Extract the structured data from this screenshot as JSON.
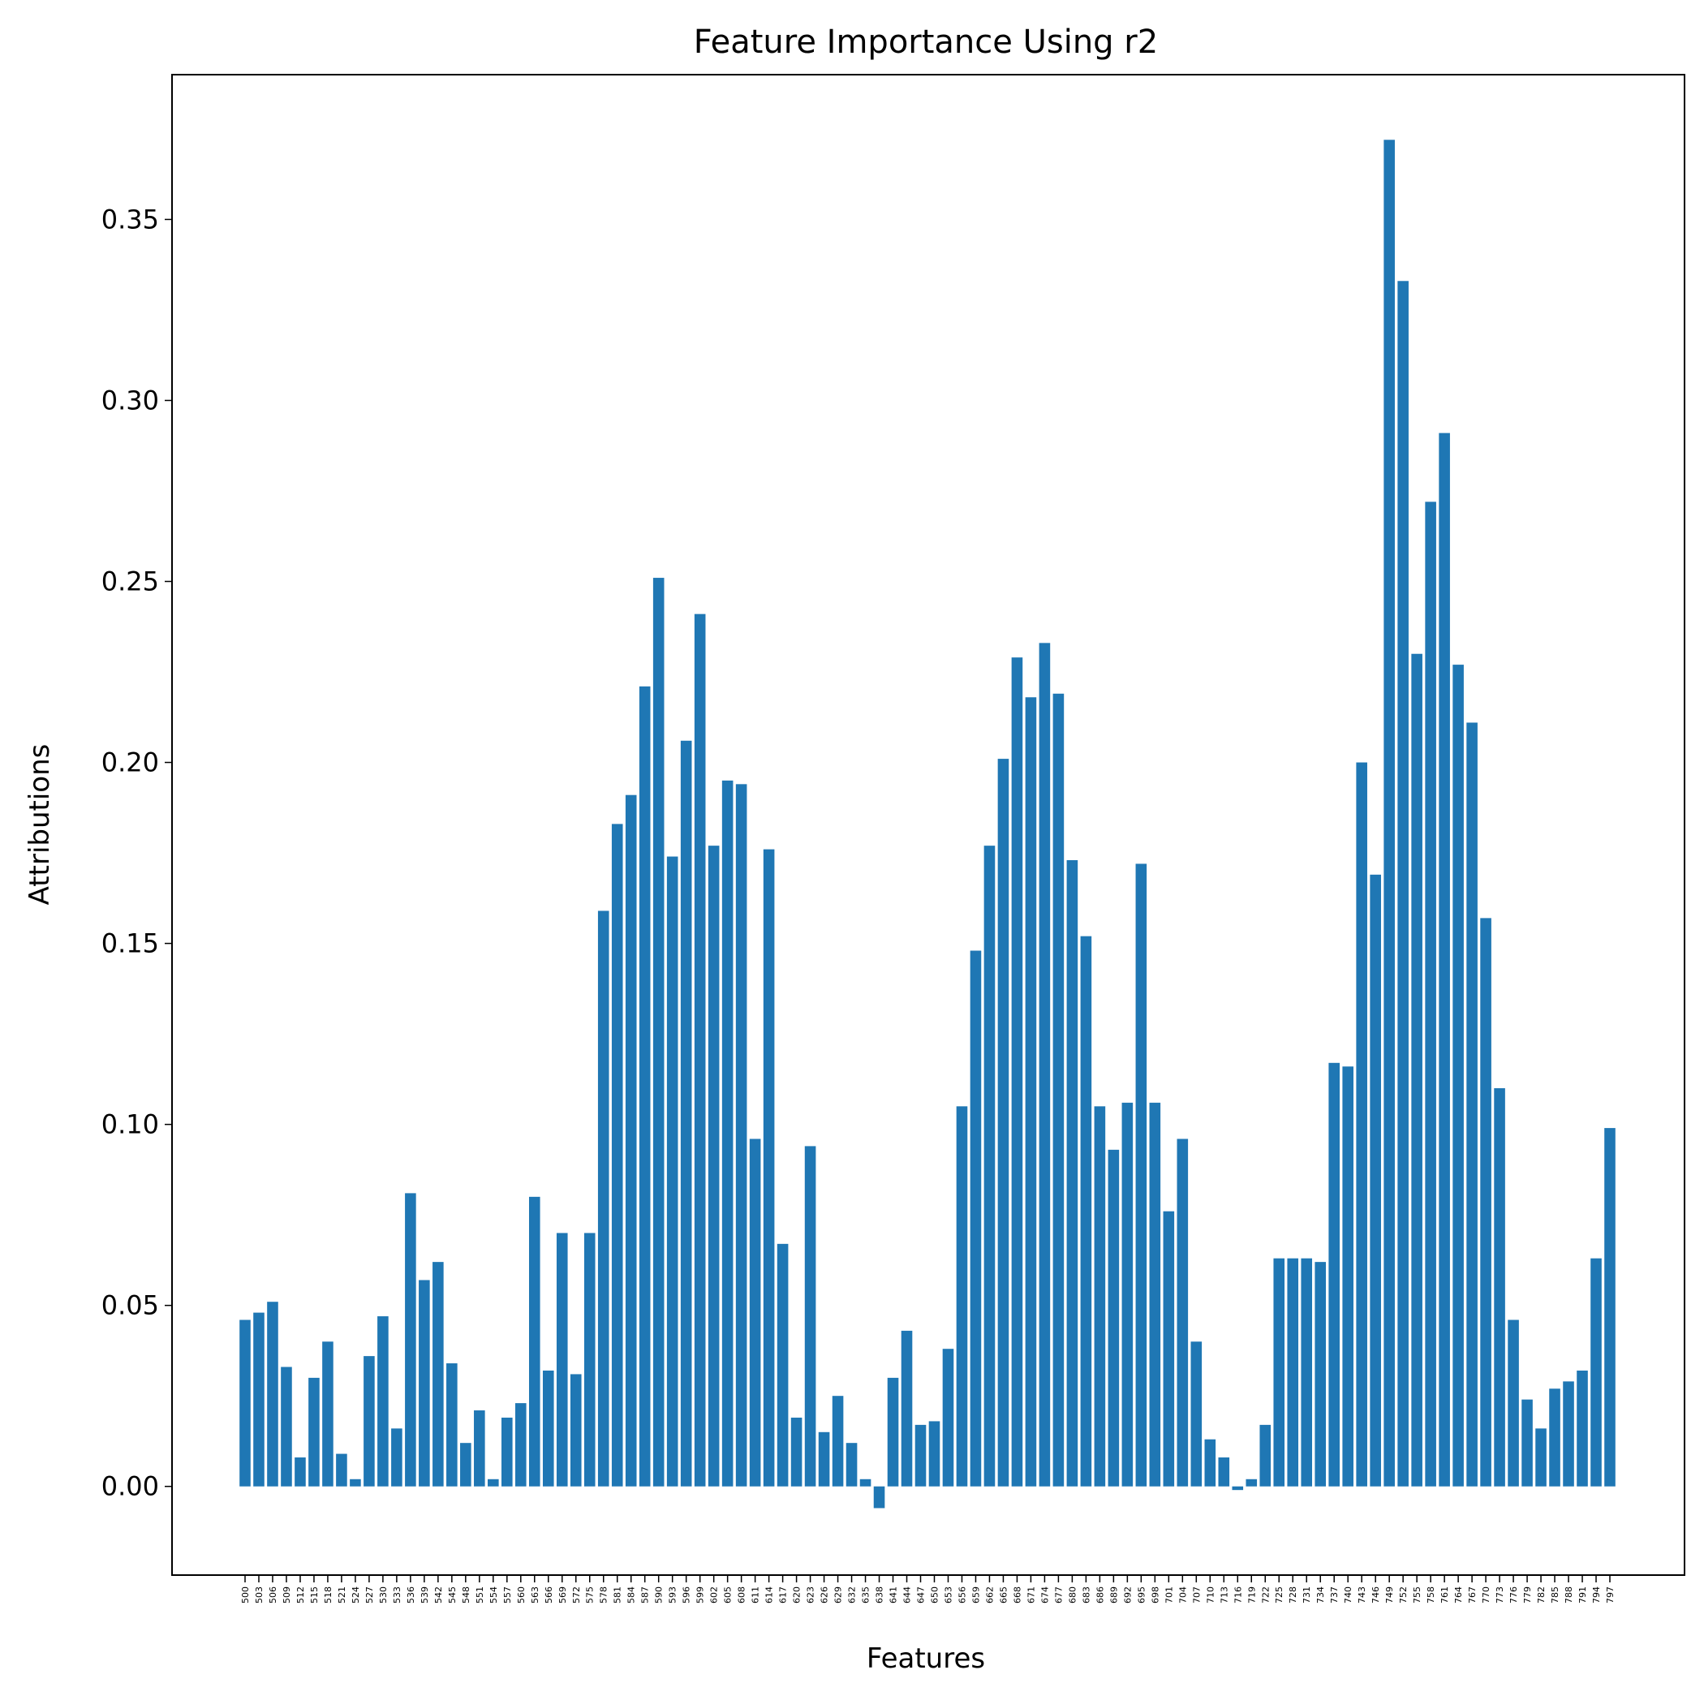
{
  "chart_data": {
    "type": "bar",
    "title": "Feature Importance Using r2",
    "xlabel": "Features",
    "ylabel": "Attributions",
    "color": "#1f77b4",
    "ylim": [
      -0.0245,
      0.39
    ],
    "yticks": [
      0.0,
      0.05,
      0.1,
      0.15,
      0.2,
      0.25,
      0.3,
      0.35
    ],
    "ytick_labels": [
      "0.00",
      "0.05",
      "0.10",
      "0.15",
      "0.20",
      "0.25",
      "0.30",
      "0.35"
    ],
    "grid": false,
    "categories": [
      "500",
      "503",
      "506",
      "509",
      "512",
      "515",
      "518",
      "521",
      "524",
      "527",
      "530",
      "533",
      "536",
      "539",
      "542",
      "545",
      "548",
      "551",
      "554",
      "557",
      "560",
      "563",
      "566",
      "569",
      "572",
      "575",
      "578",
      "581",
      "584",
      "587",
      "590",
      "593",
      "596",
      "599",
      "602",
      "605",
      "608",
      "611",
      "614",
      "617",
      "620",
      "623",
      "626",
      "629",
      "632",
      "635",
      "638",
      "641",
      "644",
      "647",
      "650",
      "653",
      "656",
      "659",
      "662",
      "665",
      "668",
      "671",
      "674",
      "677",
      "680",
      "683",
      "686",
      "689",
      "692",
      "695",
      "698",
      "701",
      "704",
      "707",
      "710",
      "713",
      "716",
      "719",
      "722",
      "725",
      "728",
      "731",
      "734",
      "737",
      "740",
      "743",
      "746",
      "749",
      "752",
      "755",
      "758",
      "761",
      "764",
      "767",
      "770",
      "773",
      "776",
      "779",
      "782",
      "785",
      "788",
      "791",
      "794",
      "797"
    ],
    "values": [
      0.046,
      0.048,
      0.051,
      0.033,
      0.008,
      0.03,
      0.04,
      0.009,
      0.002,
      0.036,
      0.047,
      0.016,
      0.081,
      0.057,
      0.062,
      0.034,
      0.012,
      0.021,
      0.002,
      0.019,
      0.023,
      0.08,
      0.032,
      0.07,
      0.031,
      0.07,
      0.159,
      0.183,
      0.191,
      0.221,
      0.251,
      0.174,
      0.206,
      0.241,
      0.177,
      0.195,
      0.194,
      0.096,
      0.176,
      0.067,
      0.019,
      0.094,
      0.015,
      0.025,
      0.012,
      0.002,
      -0.006,
      0.03,
      0.043,
      0.017,
      0.018,
      0.038,
      0.105,
      0.148,
      0.177,
      0.201,
      0.229,
      0.218,
      0.233,
      0.219,
      0.173,
      0.152,
      0.105,
      0.093,
      0.106,
      0.172,
      0.106,
      0.076,
      0.096,
      0.04,
      0.013,
      0.008,
      -0.001,
      0.002,
      0.017,
      0.063,
      0.063,
      0.063,
      0.062,
      0.117,
      0.116,
      0.2,
      0.169,
      0.372,
      0.333,
      0.23,
      0.272,
      0.291,
      0.227,
      0.211,
      0.157,
      0.11,
      0.046,
      0.024,
      0.016,
      0.027,
      0.029,
      0.032,
      0.063,
      0.099
    ]
  }
}
